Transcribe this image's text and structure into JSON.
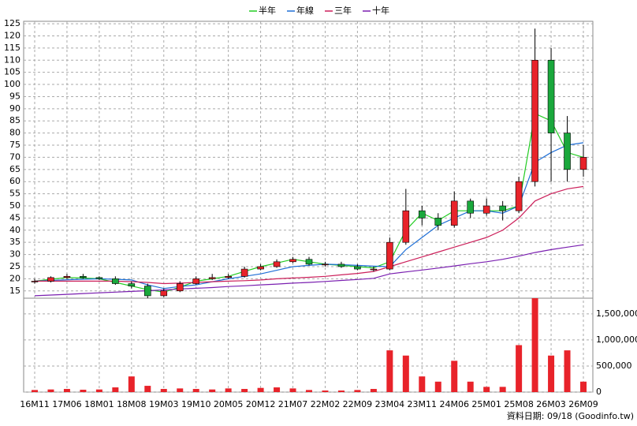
{
  "chart_data": {
    "type": "candlestick",
    "legend": "top",
    "grid": true,
    "up_color": "#e8232a",
    "down_color": "#1aa83c",
    "categories": [
      "16M11",
      null,
      "17M06",
      null,
      "18M01",
      null,
      "18M08",
      null,
      "19M03",
      null,
      "19M10",
      null,
      "20M05",
      null,
      "20M12",
      null,
      "21M07",
      null,
      "22M02",
      null,
      "22M09",
      null,
      "23M04",
      null,
      "23M11",
      null,
      "24M06",
      null,
      "25M01",
      null,
      "25M08",
      null,
      "26M03",
      null,
      "26M09"
    ],
    "open": [
      19,
      19,
      20.5,
      21,
      20.5,
      20,
      18,
      17,
      13,
      15,
      18,
      20,
      20.5,
      21,
      24,
      25,
      27,
      28,
      26,
      26,
      25,
      24,
      24,
      35,
      48,
      45,
      42,
      52,
      47,
      50,
      48,
      60,
      110,
      80,
      65
    ],
    "high": [
      20,
      21,
      22,
      22,
      21,
      21,
      19,
      18,
      16,
      19,
      21,
      22,
      22,
      25,
      26,
      28,
      29,
      29,
      27,
      27,
      26,
      25,
      37,
      57,
      50,
      47,
      56,
      53,
      53,
      52,
      62,
      123,
      115,
      87,
      75
    ],
    "low": [
      18,
      18.5,
      20,
      20,
      19.5,
      17.5,
      16,
      12,
      12.5,
      14.5,
      17.5,
      19.5,
      20,
      20.5,
      23.5,
      24.5,
      26.5,
      25.5,
      25,
      24.5,
      23.5,
      23,
      23.5,
      34,
      42,
      40,
      41,
      45,
      46,
      44,
      47,
      58,
      60,
      60,
      62
    ],
    "close": [
      19,
      20.5,
      21,
      20.5,
      20,
      18,
      17,
      13,
      15,
      18,
      20,
      20.5,
      21,
      24,
      25,
      27,
      28,
      26,
      26,
      25,
      24,
      24,
      35,
      48,
      45,
      42,
      52,
      47,
      50,
      48,
      60,
      110,
      80,
      65,
      70
    ],
    "moving_averages": [
      {
        "name": "半年",
        "color": "#22cc22",
        "values": [
          19,
          19.8,
          20.5,
          20.3,
          20,
          18.5,
          17,
          15.5,
          14.5,
          16.5,
          19,
          20,
          21,
          23,
          25,
          26.5,
          28,
          27,
          26,
          25.5,
          25,
          24.5,
          27,
          40,
          47,
          44,
          48,
          48,
          48,
          48,
          50,
          88,
          85,
          72,
          70
        ]
      },
      {
        "name": "年線",
        "color": "#1f6fd6",
        "values": [
          19,
          19.3,
          19.6,
          19.8,
          20,
          19.8,
          19.5,
          17.5,
          16,
          16.8,
          17.5,
          18.8,
          20,
          21,
          22,
          23.5,
          25,
          25.5,
          26,
          25.8,
          25.5,
          25.2,
          25,
          32,
          37,
          42,
          45,
          48,
          48,
          47,
          50,
          68,
          72,
          75,
          76
        ]
      },
      {
        "name": "三年",
        "color": "#cc1f5a",
        "values": [
          19,
          19,
          19,
          19,
          19,
          19,
          18.8,
          18.5,
          18,
          18.2,
          18.5,
          18.8,
          19,
          19.2,
          19.5,
          20,
          20.3,
          20.6,
          21,
          21.6,
          22.2,
          23,
          25,
          27,
          29,
          31,
          33,
          35,
          37,
          40,
          45,
          52,
          55,
          57,
          58
        ]
      },
      {
        "name": "十年",
        "color": "#7a1fb0",
        "values": [
          13,
          13.3,
          13.6,
          13.9,
          14.2,
          14.5,
          14.8,
          15.1,
          15.4,
          15.8,
          16.1,
          16.4,
          16.8,
          17.1,
          17.5,
          17.8,
          18.2,
          18.5,
          18.9,
          19.3,
          19.7,
          20.2,
          22,
          22.8,
          23.6,
          24.4,
          25.3,
          26.2,
          27,
          28,
          29.3,
          30.8,
          32,
          33,
          34
        ]
      }
    ],
    "ylim": [
      12,
      126
    ],
    "yticks": [
      15,
      20,
      25,
      30,
      35,
      40,
      45,
      50,
      55,
      60,
      65,
      70,
      75,
      80,
      85,
      90,
      95,
      100,
      105,
      110,
      115,
      120,
      125
    ],
    "volume": {
      "color": "#e8232a",
      "values": [
        40000,
        50000,
        60000,
        45000,
        50000,
        90000,
        300000,
        120000,
        60000,
        70000,
        60000,
        50000,
        70000,
        60000,
        80000,
        90000,
        70000,
        40000,
        30000,
        30000,
        40000,
        60000,
        800000,
        700000,
        300000,
        200000,
        600000,
        200000,
        100000,
        100000,
        900000,
        1800000,
        700000,
        800000,
        200000
      ],
      "ylim": [
        0,
        1800000
      ],
      "yticks": [
        0,
        {
          "value": 500000,
          "label": "500,000"
        },
        {
          "value": 1000000,
          "label": "1,000,000"
        },
        {
          "value": 1500000,
          "label": "1,500,000"
        }
      ]
    },
    "source": "資料日期: 09/18 (Goodinfo.tw)"
  }
}
